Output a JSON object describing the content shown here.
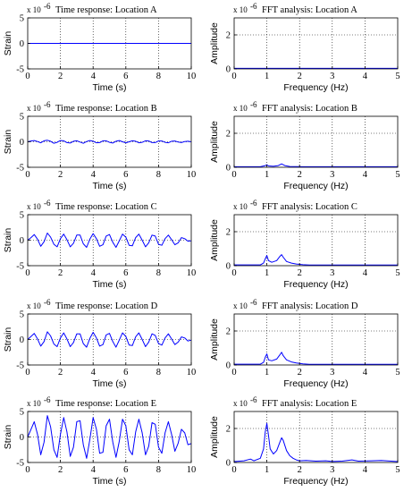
{
  "chart_data": [
    {
      "type": "line",
      "title": "Time response: Location A",
      "multiplier": "x 10",
      "exponent": "-6",
      "xlabel": "Time (s)",
      "ylabel": "Strain",
      "xlim": [
        0,
        10
      ],
      "ylim": [
        -5,
        5
      ],
      "xticks": [
        0,
        2,
        4,
        6,
        8,
        10
      ],
      "yticks": [
        -5,
        0,
        5
      ],
      "color": "#0000ff",
      "grid": true,
      "series": [
        {
          "x": [
            0,
            10
          ],
          "y": [
            0,
            0
          ]
        }
      ]
    },
    {
      "type": "line",
      "title": "FFT analysis: Location A",
      "multiplier": "x 10",
      "exponent": "-6",
      "xlabel": "Frequency (Hz)",
      "ylabel": "Amplitude",
      "xlim": [
        0,
        5
      ],
      "ylim": [
        0,
        3
      ],
      "xticks": [
        0,
        1,
        2,
        3,
        4,
        5
      ],
      "yticks": [
        0,
        2
      ],
      "color": "#0000ff",
      "grid": true,
      "series": [
        {
          "x": [
            0,
            5
          ],
          "y": [
            0.03,
            0.03
          ]
        }
      ]
    },
    {
      "type": "line",
      "title": "Time response: Location B",
      "multiplier": "x 10",
      "exponent": "-6",
      "xlabel": "Time (s)",
      "ylabel": "Strain",
      "xlim": [
        0,
        10
      ],
      "ylim": [
        -5,
        5
      ],
      "xticks": [
        0,
        2,
        4,
        6,
        8,
        10
      ],
      "yticks": [
        -5,
        0,
        5
      ],
      "color": "#0000ff",
      "grid": true,
      "series": [
        {
          "x": [
            0,
            0.2,
            0.4,
            0.6,
            0.8,
            1,
            1.2,
            1.4,
            1.6,
            1.8,
            2,
            2.2,
            2.4,
            2.6,
            2.8,
            3,
            3.2,
            3.4,
            3.6,
            3.8,
            4,
            4.2,
            4.4,
            4.6,
            4.8,
            5,
            5.2,
            5.4,
            5.6,
            5.8,
            6,
            6.2,
            6.4,
            6.6,
            6.8,
            7,
            7.2,
            7.4,
            7.6,
            7.8,
            8,
            8.2,
            8.4,
            8.6,
            8.8,
            9,
            9.2,
            9.4,
            9.6,
            9.8,
            10
          ],
          "y": [
            0,
            0.15,
            0.25,
            0.05,
            -0.2,
            0.2,
            0.3,
            0.1,
            -0.3,
            -0.1,
            0.25,
            0.2,
            -0.15,
            -0.25,
            0.1,
            0.2,
            -0.05,
            -0.3,
            0.05,
            0.25,
            0.1,
            -0.2,
            -0.15,
            0.2,
            0.2,
            -0.1,
            -0.25,
            0.1,
            0.25,
            0,
            -0.2,
            0,
            0.2,
            0.1,
            -0.2,
            -0.1,
            0.2,
            0.15,
            -0.15,
            -0.15,
            0.15,
            0.15,
            -0.1,
            -0.2,
            0.1,
            0.15,
            -0.05,
            -0.15,
            0.05,
            0.1,
            0
          ]
        }
      ]
    },
    {
      "type": "line",
      "title": "FFT analysis: Location B",
      "multiplier": "x 10",
      "exponent": "-6",
      "xlabel": "Frequency (Hz)",
      "ylabel": "Amplitude",
      "xlim": [
        0,
        5
      ],
      "ylim": [
        0,
        3
      ],
      "xticks": [
        0,
        1,
        2,
        3,
        4,
        5
      ],
      "yticks": [
        0,
        2
      ],
      "color": "#0000ff",
      "grid": true,
      "series": [
        {
          "x": [
            0,
            0.8,
            0.95,
            1.0,
            1.05,
            1.2,
            1.35,
            1.45,
            1.55,
            1.7,
            1.9,
            2.1,
            5
          ],
          "y": [
            0.03,
            0.03,
            0.1,
            0.15,
            0.08,
            0.06,
            0.1,
            0.2,
            0.1,
            0.05,
            0.04,
            0.03,
            0.03
          ]
        }
      ]
    },
    {
      "type": "line",
      "title": "Time response: Location C",
      "multiplier": "x 10",
      "exponent": "-6",
      "xlabel": "Time (s)",
      "ylabel": "Strain",
      "xlim": [
        0,
        10
      ],
      "ylim": [
        -5,
        5
      ],
      "xticks": [
        0,
        2,
        4,
        6,
        8,
        10
      ],
      "yticks": [
        -5,
        0,
        5
      ],
      "color": "#0000ff",
      "grid": true,
      "series": [
        {
          "x": [
            0,
            0.2,
            0.4,
            0.6,
            0.8,
            1,
            1.2,
            1.4,
            1.6,
            1.8,
            2,
            2.2,
            2.4,
            2.6,
            2.8,
            3,
            3.2,
            3.4,
            3.6,
            3.8,
            4,
            4.2,
            4.4,
            4.6,
            4.8,
            5,
            5.2,
            5.4,
            5.6,
            5.8,
            6,
            6.2,
            6.4,
            6.6,
            6.8,
            7,
            7.2,
            7.4,
            7.6,
            7.8,
            8,
            8.2,
            8.4,
            8.6,
            8.8,
            9,
            9.2,
            9.4,
            9.6,
            9.8,
            10
          ],
          "y": [
            0,
            0.5,
            1.1,
            0.2,
            -1.2,
            -0.3,
            1.4,
            0.6,
            -0.8,
            -1.3,
            0.3,
            1.2,
            0.1,
            -1.3,
            -0.6,
            1.0,
            1.0,
            -0.7,
            -1.4,
            0.2,
            1.3,
            0.3,
            -1.2,
            -0.9,
            0.8,
            1.1,
            -0.4,
            -1.4,
            -0.1,
            1.2,
            0.6,
            -1.0,
            -1.1,
            0.5,
            1.2,
            0,
            -1.3,
            -0.5,
            1.0,
            0.8,
            -0.8,
            -1.0,
            0.3,
            1.0,
            0.1,
            -0.9,
            -0.5,
            0.5,
            0.3,
            -0.2,
            -0.1
          ]
        }
      ]
    },
    {
      "type": "line",
      "title": "FFT analysis: Location C",
      "multiplier": "x 10",
      "exponent": "-6",
      "xlabel": "Frequency (Hz)",
      "ylabel": "Amplitude",
      "xlim": [
        0,
        5
      ],
      "ylim": [
        0,
        3
      ],
      "xticks": [
        0,
        1,
        2,
        3,
        4,
        5
      ],
      "yticks": [
        0,
        2
      ],
      "color": "#0000ff",
      "grid": true,
      "series": [
        {
          "x": [
            0,
            0.8,
            0.9,
            0.95,
            1.0,
            1.05,
            1.15,
            1.3,
            1.4,
            1.45,
            1.5,
            1.6,
            1.75,
            1.9,
            2.1,
            2.3,
            5
          ],
          "y": [
            0.05,
            0.05,
            0.15,
            0.4,
            0.6,
            0.3,
            0.2,
            0.3,
            0.55,
            0.65,
            0.5,
            0.25,
            0.15,
            0.1,
            0.06,
            0.04,
            0.04
          ]
        }
      ]
    },
    {
      "type": "line",
      "title": "Time response: Location D",
      "multiplier": "x 10",
      "exponent": "-6",
      "xlabel": "Time (s)",
      "ylabel": "Strain",
      "xlim": [
        0,
        10
      ],
      "ylim": [
        -5,
        5
      ],
      "xticks": [
        0,
        2,
        4,
        6,
        8,
        10
      ],
      "yticks": [
        -5,
        0,
        5
      ],
      "color": "#0000ff",
      "grid": true,
      "series": [
        {
          "x": [
            0,
            0.2,
            0.4,
            0.6,
            0.8,
            1,
            1.2,
            1.4,
            1.6,
            1.8,
            2,
            2.2,
            2.4,
            2.6,
            2.8,
            3,
            3.2,
            3.4,
            3.6,
            3.8,
            4,
            4.2,
            4.4,
            4.6,
            4.8,
            5,
            5.2,
            5.4,
            5.6,
            5.8,
            6,
            6.2,
            6.4,
            6.6,
            6.8,
            7,
            7.2,
            7.4,
            7.6,
            7.8,
            8,
            8.2,
            8.4,
            8.6,
            8.8,
            9,
            9.2,
            9.4,
            9.6,
            9.8,
            10
          ],
          "y": [
            0,
            0.6,
            1.2,
            0.1,
            -1.3,
            -0.4,
            1.5,
            0.7,
            -0.9,
            -1.4,
            0.3,
            1.3,
            0.1,
            -1.4,
            -0.6,
            1.1,
            1.1,
            -0.8,
            -1.5,
            0.2,
            1.4,
            0.3,
            -1.3,
            -1.0,
            0.9,
            1.2,
            -0.4,
            -1.5,
            -0.1,
            1.3,
            0.6,
            -1.1,
            -1.2,
            0.5,
            1.3,
            0,
            -1.4,
            -0.5,
            1.1,
            0.8,
            -0.8,
            -1.1,
            0.3,
            1.1,
            0.1,
            -1.0,
            -0.5,
            0.5,
            0.3,
            -0.3,
            -0.1
          ]
        }
      ]
    },
    {
      "type": "line",
      "title": "FFT analysis: Location D",
      "multiplier": "x 10",
      "exponent": "-6",
      "xlabel": "Frequency (Hz)",
      "ylabel": "Amplitude",
      "xlim": [
        0,
        5
      ],
      "ylim": [
        0,
        3
      ],
      "xticks": [
        0,
        1,
        2,
        3,
        4,
        5
      ],
      "yticks": [
        0,
        2
      ],
      "color": "#0000ff",
      "grid": true,
      "series": [
        {
          "x": [
            0,
            0.8,
            0.9,
            0.95,
            1.0,
            1.05,
            1.15,
            1.3,
            1.4,
            1.45,
            1.5,
            1.6,
            1.75,
            1.9,
            2.1,
            2.3,
            5
          ],
          "y": [
            0.05,
            0.05,
            0.15,
            0.45,
            0.65,
            0.3,
            0.25,
            0.35,
            0.6,
            0.75,
            0.55,
            0.3,
            0.18,
            0.12,
            0.07,
            0.04,
            0.04
          ]
        }
      ]
    },
    {
      "type": "line",
      "title": "Time response: Location E",
      "multiplier": "x 10",
      "exponent": "-6",
      "xlabel": "Time (s)",
      "ylabel": "Strain",
      "xlim": [
        0,
        10
      ],
      "ylim": [
        -5,
        5
      ],
      "xticks": [
        0,
        2,
        4,
        6,
        8,
        10
      ],
      "yticks": [
        -5,
        0,
        5
      ],
      "color": "#0000ff",
      "grid": true,
      "series": [
        {
          "x": [
            0,
            0.2,
            0.4,
            0.6,
            0.8,
            1,
            1.2,
            1.4,
            1.6,
            1.8,
            2,
            2.2,
            2.4,
            2.6,
            2.8,
            3,
            3.2,
            3.4,
            3.6,
            3.8,
            4,
            4.2,
            4.4,
            4.6,
            4.8,
            5,
            5.2,
            5.4,
            5.6,
            5.8,
            6,
            6.2,
            6.4,
            6.6,
            6.8,
            7,
            7.2,
            7.4,
            7.6,
            7.8,
            8,
            8.2,
            8.4,
            8.6,
            8.8,
            9,
            9.2,
            9.4,
            9.6,
            9.8,
            10
          ],
          "y": [
            0,
            1.5,
            3.0,
            0.5,
            -3.5,
            -1.0,
            4.2,
            2.0,
            -2.5,
            -4.0,
            0.5,
            3.8,
            1.0,
            -3.8,
            -2.0,
            3.0,
            3.2,
            -1.5,
            -4.2,
            -0.5,
            3.8,
            1.5,
            -3.2,
            -3.0,
            2.2,
            3.5,
            -1.0,
            -4.0,
            -0.8,
            3.5,
            2.2,
            -2.5,
            -3.5,
            1.0,
            3.5,
            0.8,
            -3.5,
            -1.8,
            2.8,
            2.5,
            -2.0,
            -3.2,
            0.8,
            3.0,
            0.5,
            -2.8,
            -1.2,
            1.5,
            0.8,
            -1.5,
            -1.3
          ]
        }
      ]
    },
    {
      "type": "line",
      "title": "FFT analysis: Location E",
      "multiplier": "x 10",
      "exponent": "-6",
      "xlabel": "Frequency (Hz)",
      "ylabel": "Amplitude",
      "xlim": [
        0,
        5
      ],
      "ylim": [
        0,
        3
      ],
      "xticks": [
        0,
        1,
        2,
        3,
        4,
        5
      ],
      "yticks": [
        0,
        2
      ],
      "color": "#0000ff",
      "grid": true,
      "series": [
        {
          "x": [
            0,
            0.3,
            0.5,
            0.6,
            0.8,
            0.9,
            0.95,
            1.0,
            1.05,
            1.1,
            1.2,
            1.3,
            1.4,
            1.45,
            1.5,
            1.6,
            1.7,
            1.8,
            1.9,
            2.0,
            2.2,
            2.5,
            2.8,
            3.0,
            3.3,
            3.6,
            3.8,
            4.2,
            4.5,
            5
          ],
          "y": [
            0.05,
            0.1,
            0.2,
            0.1,
            0.25,
            0.8,
            1.8,
            2.3,
            1.6,
            0.8,
            0.5,
            0.7,
            1.2,
            1.45,
            1.3,
            0.7,
            0.4,
            0.25,
            0.15,
            0.1,
            0.12,
            0.08,
            0.1,
            0.06,
            0.08,
            0.15,
            0.08,
            0.1,
            0.12,
            0.05
          ]
        }
      ]
    }
  ]
}
